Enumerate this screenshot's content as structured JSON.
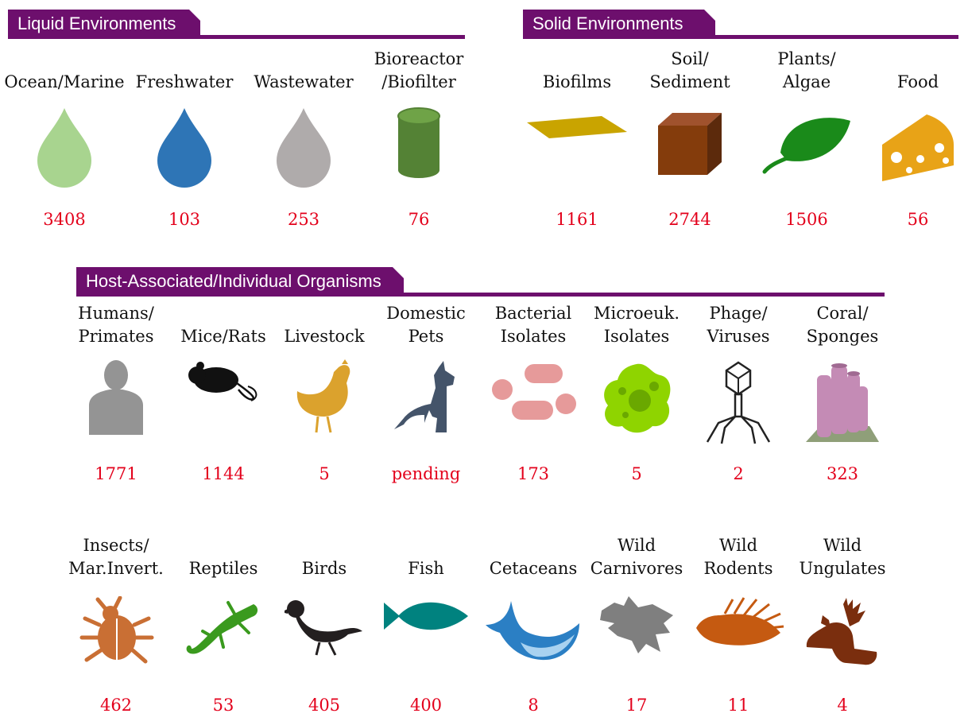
{
  "sections": {
    "liquid": "Liquid Environments",
    "solid": "Solid Environments",
    "host": "Host-Associated/Individual Organisms"
  },
  "liquid": [
    {
      "label": "Ocean/Marine",
      "count": "3408",
      "icon": "light-green-water-drop-icon"
    },
    {
      "label": "Freshwater",
      "count": "103",
      "icon": "blue-water-drop-icon"
    },
    {
      "label": "Wastewater",
      "count": "253",
      "icon": "gray-water-drop-icon"
    },
    {
      "label": "Bioreactor\n/Biofilter",
      "count": "76",
      "icon": "green-cylinder-icon"
    }
  ],
  "solid": [
    {
      "label": "Biofilms",
      "count": "1161",
      "icon": "biofilm-sheet-icon"
    },
    {
      "label": "Soil/\nSediment",
      "count": "2744",
      "icon": "soil-cube-icon"
    },
    {
      "label": "Plants/\nAlgae",
      "count": "1506",
      "icon": "leaf-icon"
    },
    {
      "label": "Food",
      "count": "56",
      "icon": "cheese-icon"
    }
  ],
  "host_row1": [
    {
      "label": "Humans/\nPrimates",
      "count": "1771",
      "icon": "human-silhouette-icon"
    },
    {
      "label": "Mice/Rats",
      "count": "1144",
      "icon": "mouse-icon"
    },
    {
      "label": "Livestock",
      "count": "5",
      "icon": "chicken-icon"
    },
    {
      "label": "Domestic\nPets",
      "count": "pending",
      "icon": "dog-and-cat-icon"
    },
    {
      "label": "Bacterial\nIsolates",
      "count": "173",
      "icon": "bacteria-icon"
    },
    {
      "label": "Microeuk.\nIsolates",
      "count": "5",
      "icon": "microbe-blob-icon"
    },
    {
      "label": "Phage/\nViruses",
      "count": "2",
      "icon": "bacteriophage-icon"
    },
    {
      "label": "Coral/\nSponges",
      "count": "323",
      "icon": "sponge-icon"
    }
  ],
  "host_row2": [
    {
      "label": "Insects/\nMar.Invert.",
      "count": "462",
      "icon": "beetle-icon"
    },
    {
      "label": "Reptiles",
      "count": "53",
      "icon": "gecko-icon"
    },
    {
      "label": "Birds",
      "count": "405",
      "icon": "bird-icon"
    },
    {
      "label": "Fish",
      "count": "400",
      "icon": "fish-icon"
    },
    {
      "label": "Cetaceans",
      "count": "8",
      "icon": "whale-icon"
    },
    {
      "label": "Wild\nCarnivores",
      "count": "17",
      "icon": "wolf-head-icon"
    },
    {
      "label": "Wild\nRodents",
      "count": "11",
      "icon": "porcupine-icon"
    },
    {
      "label": "Wild\nUngulates",
      "count": "4",
      "icon": "moose-head-icon"
    }
  ]
}
